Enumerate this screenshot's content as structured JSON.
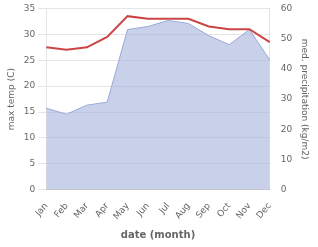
{
  "chart_data": {
    "type": "line",
    "xlabel": "date (month)",
    "ylabel": "max temp (C)",
    "y2label": "med. precipitation (kg/m2)",
    "categories": [
      "Jan",
      "Feb",
      "Mar",
      "Apr",
      "May",
      "Jun",
      "Jul",
      "Aug",
      "Sep",
      "Oct",
      "Nov",
      "Dec"
    ],
    "series": [
      {
        "color": "#cc4444",
        "values": [
          27.5,
          27.0,
          27.5,
          29.5,
          33.5,
          33.0,
          33.0,
          33.0,
          31.5,
          31.0,
          31.0,
          28.5
        ]
      },
      {
        "type": "area",
        "axis": "y2",
        "color": "#9aaad8",
        "values": [
          27.0,
          25.0,
          28.0,
          29.0,
          53.0,
          54.0,
          56.0,
          55.0,
          51.0,
          48.0,
          53.0,
          43.0
        ]
      }
    ],
    "ylim": [
      0,
      35
    ],
    "yticks": [
      0,
      5,
      10,
      15,
      20,
      25,
      30,
      35
    ],
    "y2lim": [
      0,
      60
    ],
    "y2ticks": [
      0,
      10,
      20,
      30,
      40,
      50,
      60
    ],
    "grid": true
  }
}
